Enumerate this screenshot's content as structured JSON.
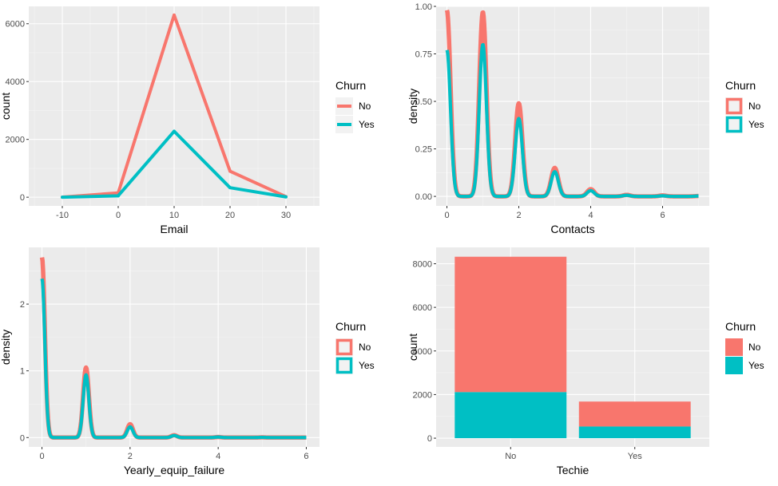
{
  "colors": {
    "panel_bg": "#EBEBEB",
    "grid_major": "#FFFFFF",
    "grid_minor": "#F5F5F5",
    "no": "#F8766D",
    "yes": "#00BFC4"
  },
  "chart_data": [
    {
      "type": "line",
      "xlabel": "Email",
      "ylabel": "count",
      "xlim": [
        -16,
        36
      ],
      "ylim": [
        -300,
        6600
      ],
      "xticks": [
        -10,
        0,
        10,
        20,
        30
      ],
      "yticks": [
        0,
        2000,
        4000,
        6000
      ],
      "legend": {
        "title": "Churn",
        "position": "right",
        "labels": [
          "No",
          "Yes"
        ],
        "key": "line"
      },
      "series": [
        {
          "name": "No",
          "x": [
            -10,
            0,
            10,
            20,
            30
          ],
          "y": [
            5,
            150,
            6300,
            900,
            20
          ]
        },
        {
          "name": "Yes",
          "x": [
            -10,
            0,
            10,
            20,
            30
          ],
          "y": [
            0,
            50,
            2280,
            330,
            10
          ]
        }
      ]
    },
    {
      "type": "area",
      "xlabel": "Contacts",
      "ylabel": "density",
      "xlim": [
        -0.3,
        7.3
      ],
      "ylim": [
        -0.05,
        1.0
      ],
      "xticks": [
        0,
        2,
        4,
        6
      ],
      "yticks": [
        0.0,
        0.25,
        0.5,
        0.75,
        1.0
      ],
      "ytick_labels": [
        "0.00",
        "0.25",
        "0.50",
        "0.75",
        "1.00"
      ],
      "legend": {
        "title": "Churn",
        "position": "right",
        "labels": [
          "No",
          "Yes"
        ],
        "key": "outline"
      },
      "series": [
        {
          "name": "No",
          "peaks_x": [
            0,
            1,
            2,
            3,
            4,
            5,
            6,
            7
          ],
          "peaks_y": [
            0.98,
            0.97,
            0.49,
            0.15,
            0.038,
            0.008,
            0.005,
            0.002
          ]
        },
        {
          "name": "Yes",
          "peaks_x": [
            0,
            1,
            2,
            3,
            4,
            5,
            6,
            7
          ],
          "peaks_y": [
            0.77,
            0.8,
            0.41,
            0.13,
            0.03,
            0.006,
            0.003,
            0.002
          ]
        }
      ]
    },
    {
      "type": "area",
      "xlabel": "Yearly_equip_failure",
      "ylabel": "density",
      "xlim": [
        -0.3,
        6.3
      ],
      "ylim": [
        -0.14,
        2.85
      ],
      "xticks": [
        0,
        2,
        4,
        6
      ],
      "yticks": [
        0,
        1,
        2
      ],
      "legend": {
        "title": "Churn",
        "position": "right",
        "labels": [
          "No",
          "Yes"
        ],
        "key": "outline"
      },
      "series": [
        {
          "name": "No",
          "peaks_x": [
            0,
            1,
            2,
            3,
            4,
            5,
            6
          ],
          "peaks_y": [
            2.7,
            1.05,
            0.2,
            0.035,
            0.008,
            0.003,
            0.001
          ]
        },
        {
          "name": "Yes",
          "peaks_x": [
            0,
            1,
            2,
            3,
            4,
            5,
            6
          ],
          "peaks_y": [
            2.38,
            0.94,
            0.16,
            0.03,
            0.008,
            0.003,
            0.001
          ]
        }
      ]
    },
    {
      "type": "bar",
      "stacked": true,
      "xlabel": "Techie",
      "ylabel": "count",
      "categories": [
        "No",
        "Yes"
      ],
      "ylim": [
        -400,
        8750
      ],
      "yticks": [
        0,
        2000,
        4000,
        6000,
        8000
      ],
      "legend": {
        "title": "Churn",
        "position": "right",
        "labels": [
          "No",
          "Yes"
        ],
        "key": "fill"
      },
      "series": [
        {
          "name": "Yes",
          "values": [
            2115,
            535
          ]
        },
        {
          "name": "No",
          "values": [
            6206,
            1144
          ]
        }
      ]
    }
  ]
}
